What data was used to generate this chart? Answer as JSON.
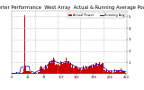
{
  "title": "Solar PV/Inverter Performance  West Array  Actual & Running Average Power Output",
  "title_fontsize": 3.8,
  "bg_color": "#ffffff",
  "plot_bg_color": "#ffffff",
  "grid_color": "#aaaaaa",
  "bar_color": "#cc0000",
  "avg_color": "#0000cc",
  "ylim": [
    0,
    5.5
  ],
  "y_ticks": [
    1,
    2,
    3,
    4,
    5
  ],
  "legend_labels": [
    "Actual Power",
    "Running Avg"
  ],
  "legend_colors": [
    "#cc0000",
    "#0000cc"
  ],
  "x_tick_fontsize": 2.5,
  "y_tick_fontsize": 2.8,
  "spike_index": 28,
  "spike_value": 5.1,
  "n_points": 250
}
